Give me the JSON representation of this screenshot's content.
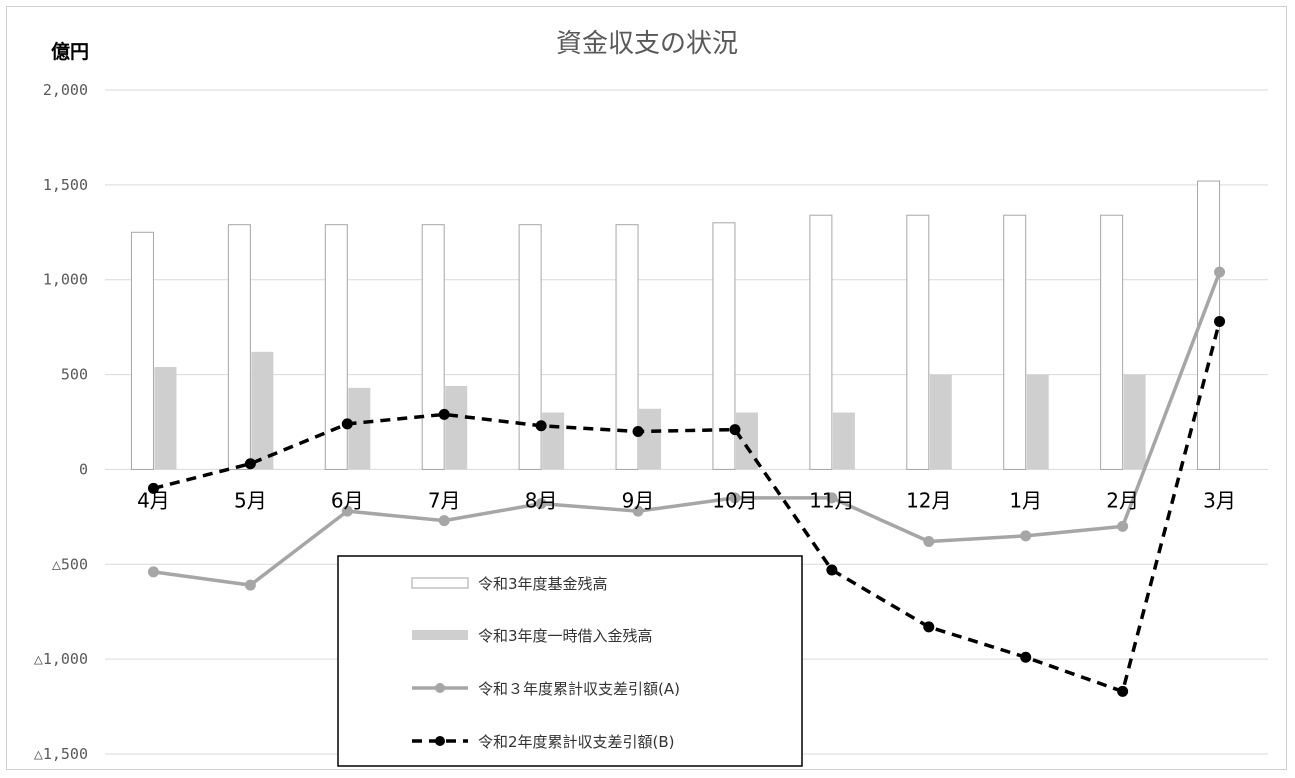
{
  "chart_data": {
    "type": "bar",
    "title": "資金収支の状況",
    "unit_label": "億円",
    "categories": [
      "4月",
      "5月",
      "6月",
      "7月",
      "8月",
      "9月",
      "10月",
      "11月",
      "12月",
      "1月",
      "2月",
      "3月"
    ],
    "y_ticks": [
      {
        "value": 2000,
        "label": "2,000"
      },
      {
        "value": 1500,
        "label": "1,500"
      },
      {
        "value": 1000,
        "label": "1,000"
      },
      {
        "value": 500,
        "label": "500"
      },
      {
        "value": 0,
        "label": "0"
      },
      {
        "value": -500,
        "label": "△500"
      },
      {
        "value": -1000,
        "label": "△1,000"
      },
      {
        "value": -1500,
        "label": "△1,500"
      }
    ],
    "ylim": [
      -1500,
      2000
    ],
    "grid": true,
    "series": [
      {
        "name": "令和3年度基金残高",
        "kind": "bar",
        "color": "#ffffff",
        "stroke": "#a6a6a6",
        "values": [
          1250,
          1290,
          1290,
          1290,
          1290,
          1290,
          1300,
          1340,
          1340,
          1340,
          1340,
          1520
        ]
      },
      {
        "name": "令和3年度一時借入金残高",
        "kind": "bar",
        "color": "#cfcfcf",
        "values": [
          540,
          620,
          430,
          440,
          300,
          320,
          300,
          300,
          500,
          500,
          500,
          0
        ]
      },
      {
        "name": "令和３年度累計収支差引額(A)",
        "kind": "line",
        "color": "#a6a6a6",
        "values": [
          -540,
          -610,
          -220,
          -270,
          -180,
          -220,
          -150,
          -150,
          -380,
          -350,
          -300,
          1040
        ]
      },
      {
        "name": "令和2年度累計収支差引額(B)",
        "kind": "line-dashed",
        "color": "#000000",
        "values": [
          -100,
          30,
          240,
          290,
          230,
          200,
          210,
          -530,
          -830,
          -990,
          -1170,
          780
        ]
      }
    ]
  }
}
